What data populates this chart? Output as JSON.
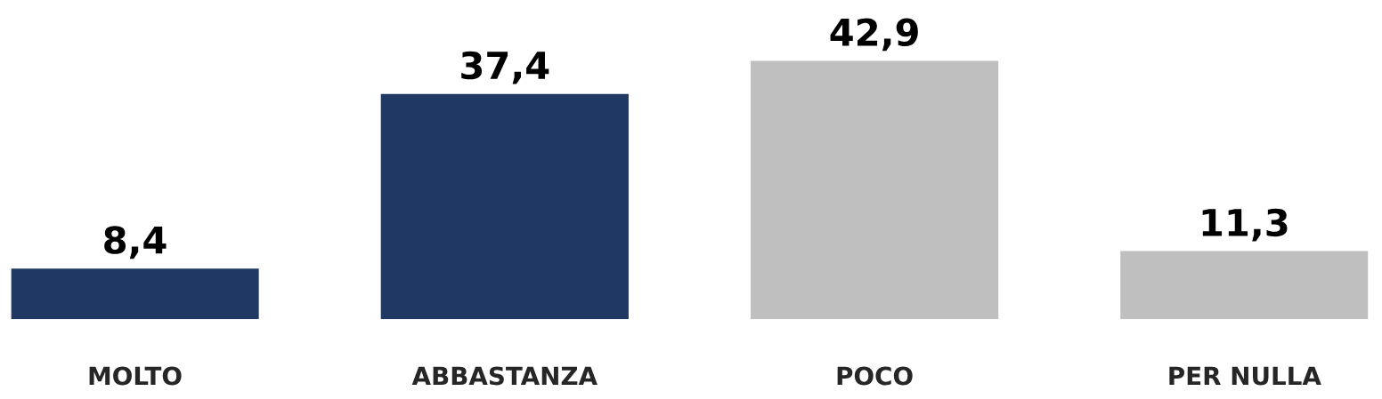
{
  "chart_data": {
    "type": "bar",
    "categories": [
      "MOLTO",
      "ABBASTANZA",
      "POCO",
      "PER NULLA"
    ],
    "values": [
      8.4,
      37.4,
      42.9,
      11.3
    ],
    "colors": [
      "#203864",
      "#203864",
      "#bfbfbf",
      "#bfbfbf"
    ],
    "value_labels": [
      "8,4",
      "37,4",
      "42,9",
      "11,3"
    ]
  }
}
